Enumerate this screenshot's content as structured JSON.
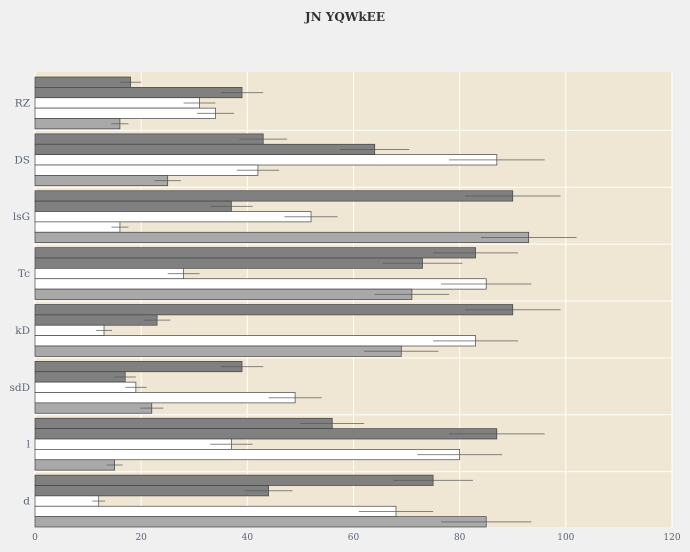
{
  "chart_data": {
    "type": "bar",
    "orientation": "horizontal",
    "title": "JN YQWkEE",
    "xlabel": "",
    "ylabel": "",
    "xlim": [
      0,
      120
    ],
    "xticks": [
      0,
      20,
      40,
      60,
      80,
      100,
      120
    ],
    "grid": true,
    "categories": [
      "RZ",
      "DS",
      "lsG",
      "Tc",
      "kD",
      "sdD",
      "l",
      "d"
    ],
    "series": [
      {
        "color": "#808080",
        "values": [
          18,
          43,
          90,
          83,
          90,
          39,
          56,
          75
        ],
        "errors": [
          2,
          4.5,
          9,
          8,
          9,
          4,
          6,
          7.5
        ]
      },
      {
        "color": "#808080",
        "values": [
          39,
          64,
          37,
          73,
          23,
          17,
          87,
          44
        ],
        "errors": [
          4,
          6.5,
          4,
          7.5,
          2.5,
          2,
          9,
          4.5
        ]
      },
      {
        "color": "#ffffff",
        "values": [
          31,
          87,
          52,
          28,
          13,
          19,
          37,
          12
        ],
        "errors": [
          3,
          9,
          5,
          3,
          1.5,
          2,
          4,
          1.2
        ]
      },
      {
        "color": "#ffffff",
        "values": [
          34,
          42,
          16,
          85,
          83,
          49,
          80,
          68
        ],
        "errors": [
          3.5,
          4,
          1.6,
          8.5,
          8,
          5,
          8,
          7
        ]
      },
      {
        "color": "#a9a9a9",
        "values": [
          16,
          25,
          93,
          71,
          69,
          22,
          15,
          85
        ],
        "errors": [
          1.6,
          2.5,
          9,
          7,
          7,
          2.2,
          1.5,
          8.5
        ]
      }
    ]
  }
}
